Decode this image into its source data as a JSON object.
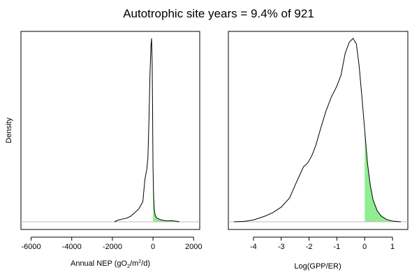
{
  "figure": {
    "title": "Autotrophic site years = 9.4% of 921",
    "shade_color": "#90EE90",
    "baseline_color": "#BDBDBD"
  },
  "chart_data": [
    {
      "type": "area",
      "panel": "left",
      "xlabel_parts": [
        "Annual NEP (gO",
        "2",
        "/m",
        "2",
        "/d)"
      ],
      "ylabel": "Density",
      "xlim": [
        -6500,
        2300
      ],
      "ylim": [
        0,
        1.0
      ],
      "xticks": [
        -6000,
        -4000,
        -2000,
        0,
        2000
      ],
      "xtick_labels": [
        "-6000",
        "-4000",
        "-2000",
        "0",
        "2000"
      ],
      "shade_from_x": 0,
      "x": [
        -1900,
        -1700,
        -1500,
        -1300,
        -1100,
        -1000,
        -900,
        -800,
        -700,
        -600,
        -500,
        -450,
        -400,
        -350,
        -300,
        -250,
        -200,
        -150,
        -100,
        -70,
        -40,
        -20,
        0,
        30,
        60,
        100,
        150,
        200,
        300,
        400,
        500,
        700,
        900,
        1100,
        1300
      ],
      "y": [
        0,
        0.01,
        0.015,
        0.02,
        0.03,
        0.04,
        0.05,
        0.06,
        0.07,
        0.09,
        0.11,
        0.17,
        0.23,
        0.26,
        0.29,
        0.35,
        0.55,
        0.8,
        0.96,
        1.0,
        0.86,
        0.6,
        0.3,
        0.14,
        0.07,
        0.04,
        0.025,
        0.02,
        0.015,
        0.01,
        0.008,
        0.005,
        0.006,
        0.004,
        0
      ]
    },
    {
      "type": "area",
      "panel": "right",
      "xlabel": "Log(GPP/ER)",
      "ylabel": "",
      "xlim": [
        -4.9,
        1.55
      ],
      "ylim": [
        0,
        1.0
      ],
      "xticks": [
        -4,
        -3,
        -2,
        -1,
        0,
        1
      ],
      "xtick_labels": [
        "-4",
        "-3",
        "-2",
        "-1",
        "0",
        "1"
      ],
      "shade_from_x": 0,
      "x": [
        -4.7,
        -4.3,
        -4.0,
        -3.6,
        -3.3,
        -3.0,
        -2.7,
        -2.5,
        -2.35,
        -2.2,
        -2.05,
        -1.9,
        -1.75,
        -1.6,
        -1.4,
        -1.2,
        -1.0,
        -0.85,
        -0.7,
        -0.55,
        -0.42,
        -0.3,
        -0.2,
        -0.1,
        0.0,
        0.1,
        0.2,
        0.3,
        0.45,
        0.6,
        0.8,
        1.0,
        1.3
      ],
      "y": [
        0,
        0.003,
        0.01,
        0.03,
        0.05,
        0.08,
        0.13,
        0.2,
        0.25,
        0.3,
        0.32,
        0.36,
        0.42,
        0.5,
        0.6,
        0.68,
        0.74,
        0.8,
        0.92,
        0.98,
        1.0,
        0.97,
        0.85,
        0.68,
        0.5,
        0.32,
        0.2,
        0.12,
        0.06,
        0.03,
        0.012,
        0.004,
        0
      ]
    }
  ]
}
